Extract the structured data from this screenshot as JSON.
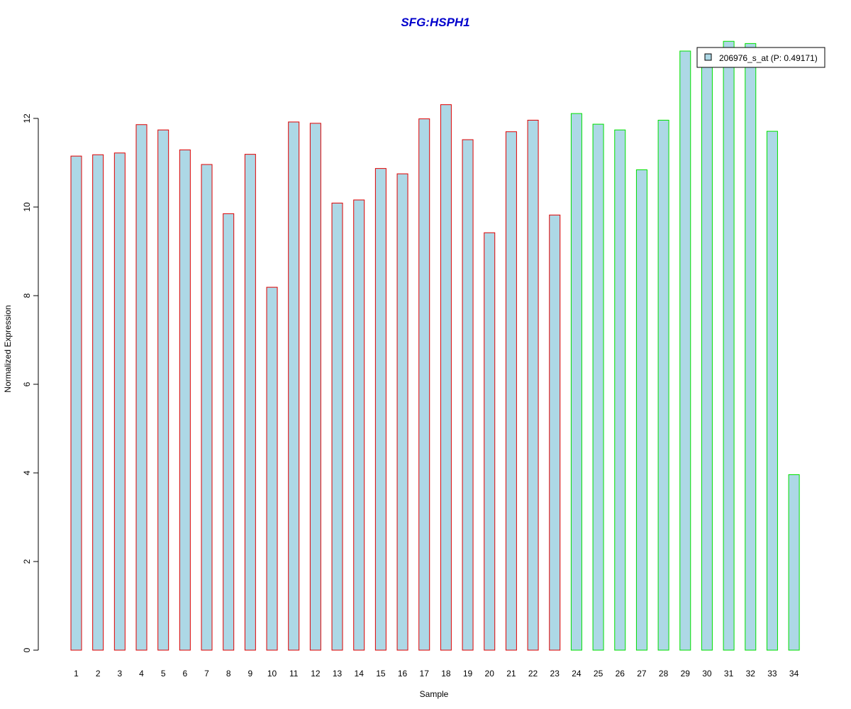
{
  "colors": {
    "bar_fill": "#add8e6",
    "group1_border": "#e00000",
    "group2_border": "#00e000",
    "title": "#0000cc",
    "axis": "#000000",
    "legend_border": "#000000"
  },
  "chart_data": {
    "type": "bar",
    "title": "SFG:HSPH1",
    "xlabel": "Sample",
    "ylabel": "Normalized Expression",
    "ylim": [
      0,
      13.8
    ],
    "yticks": [
      0,
      2,
      4,
      6,
      8,
      10,
      12
    ],
    "grid": false,
    "legend": {
      "placement": "top-right",
      "entries": [
        "206976_s_at (P: 0.49171)"
      ]
    },
    "categories": [
      "1",
      "2",
      "3",
      "4",
      "5",
      "6",
      "7",
      "8",
      "9",
      "10",
      "11",
      "12",
      "13",
      "14",
      "15",
      "16",
      "17",
      "18",
      "19",
      "20",
      "21",
      "22",
      "23",
      "24",
      "25",
      "26",
      "27",
      "28",
      "29",
      "30",
      "31",
      "32",
      "33",
      "34"
    ],
    "series": [
      {
        "name": "206976_s_at (P: 0.49171)",
        "values": [
          11.15,
          11.18,
          11.22,
          11.86,
          11.74,
          11.29,
          10.96,
          9.85,
          11.19,
          8.19,
          11.92,
          11.89,
          10.09,
          10.16,
          10.87,
          10.75,
          11.99,
          12.31,
          11.52,
          9.42,
          11.7,
          11.96,
          9.82,
          12.11,
          11.87,
          11.74,
          10.84,
          11.96,
          13.52,
          13.37,
          13.74,
          13.69,
          11.71,
          3.96
        ],
        "groups": [
          1,
          1,
          1,
          1,
          1,
          1,
          1,
          1,
          1,
          1,
          1,
          1,
          1,
          1,
          1,
          1,
          1,
          1,
          1,
          1,
          1,
          1,
          1,
          2,
          2,
          2,
          2,
          2,
          2,
          2,
          2,
          2,
          2,
          2
        ]
      }
    ]
  }
}
